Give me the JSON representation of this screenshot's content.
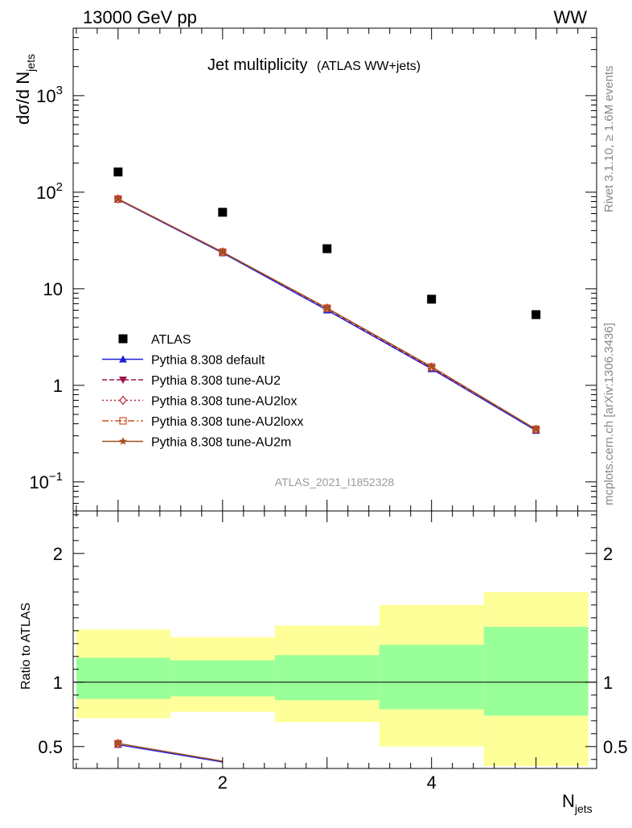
{
  "header": {
    "left": "13000 GeV pp",
    "right": "WW"
  },
  "title": {
    "main": "Jet multiplicity",
    "sub": "(ATLAS WW+jets)"
  },
  "side_labels": {
    "version": "Rivet 3.1.10, ≥ 1.6M events",
    "source": "mcplots.cern.ch [arXiv:1306.3436]"
  },
  "watermark": "ATLAS_2021_I1852328",
  "axes": {
    "ylabel_main": "dσ/d N",
    "ylabel_main_sub": "jets",
    "ylabel_ratio": "Ratio to ATLAS",
    "xlabel": "N",
    "xlabel_sub": "jets"
  },
  "colors": {
    "atlas": "#000000",
    "default": "#1f1fd6",
    "au2": "#a0144e",
    "au2lox": "#b8283c",
    "au2loxx": "#d0502a",
    "au2m": "#a0501a",
    "band_inner": "#99ff99",
    "band_outer": "#ffff99"
  },
  "chart_data": [
    {
      "type": "scatter",
      "panel": "main",
      "y_scale": "log",
      "xlim": [
        0.5,
        5.5
      ],
      "ylim": [
        0.05,
        5000
      ],
      "x_ticks": [
        2,
        4
      ],
      "y_ticks": [
        {
          "value": 0.1,
          "label": "10",
          "exp": "−1"
        },
        {
          "value": 1,
          "label": "1",
          "exp": ""
        },
        {
          "value": 10,
          "label": "10",
          "exp": ""
        },
        {
          "value": 100,
          "label": "10",
          "exp": "2"
        },
        {
          "value": 1000,
          "label": "10",
          "exp": "3"
        }
      ],
      "legend_position": "lower-left",
      "series": [
        {
          "name": "ATLAS",
          "key": "atlas",
          "style": "square",
          "x": [
            1,
            2,
            3,
            4,
            5
          ],
          "y": [
            162,
            62,
            26,
            7.8,
            5.4
          ]
        },
        {
          "name": "Pythia 8.308 default",
          "key": "default",
          "style": "solid",
          "marker": "triangle-up",
          "x": [
            1,
            2,
            3,
            4,
            5
          ],
          "y": [
            84,
            23.5,
            6.0,
            1.48,
            0.34
          ]
        },
        {
          "name": "Pythia 8.308 tune-AU2",
          "key": "au2",
          "style": "dashed",
          "marker": "triangle-down",
          "x": [
            1,
            2,
            3,
            4,
            5
          ],
          "y": [
            85,
            24,
            6.2,
            1.52,
            0.35
          ]
        },
        {
          "name": "Pythia 8.308 tune-AU2lox",
          "key": "au2lox",
          "style": "dotted",
          "marker": "diamond",
          "x": [
            1,
            2,
            3,
            4,
            5
          ],
          "y": [
            85,
            24,
            6.3,
            1.54,
            0.35
          ]
        },
        {
          "name": "Pythia 8.308 tune-AU2loxx",
          "key": "au2loxx",
          "style": "dashdot",
          "marker": "open-square",
          "x": [
            1,
            2,
            3,
            4,
            5
          ],
          "y": [
            85,
            24,
            6.3,
            1.55,
            0.35
          ]
        },
        {
          "name": "Pythia 8.308 tune-AU2m",
          "key": "au2m",
          "style": "solid",
          "marker": "star",
          "x": [
            1,
            2,
            3,
            4,
            5
          ],
          "y": [
            85,
            24,
            6.3,
            1.56,
            0.35
          ]
        }
      ]
    },
    {
      "type": "line",
      "panel": "ratio",
      "xlim": [
        0.5,
        5.5
      ],
      "ylim": [
        0.33,
        2.33
      ],
      "x_ticks": [
        2,
        4
      ],
      "y_ticks": [
        0.5,
        1,
        2
      ],
      "reference": 1,
      "bands": [
        {
          "x": [
            0.6,
            1.5
          ],
          "inner": [
            0.87,
            1.19
          ],
          "outer": [
            0.72,
            1.41
          ]
        },
        {
          "x": [
            1.5,
            2.5
          ],
          "inner": [
            0.89,
            1.17
          ],
          "outer": [
            0.77,
            1.35
          ]
        },
        {
          "x": [
            2.5,
            3.5
          ],
          "inner": [
            0.86,
            1.21
          ],
          "outer": [
            0.69,
            1.44
          ]
        },
        {
          "x": [
            3.5,
            4.5
          ],
          "inner": [
            0.79,
            1.29
          ],
          "outer": [
            0.5,
            1.6
          ]
        },
        {
          "x": [
            4.5,
            5.5
          ],
          "inner": [
            0.74,
            1.43
          ],
          "outer": [
            0.35,
            1.7
          ]
        }
      ],
      "series": [
        {
          "name": "Pythia 8.308 default",
          "key": "default",
          "x": [
            1,
            2
          ],
          "y": [
            0.515,
            0.38
          ]
        },
        {
          "name": "Pythia 8.308 tune-AU2m",
          "key": "au2m",
          "x": [
            1,
            2
          ],
          "y": [
            0.525,
            0.387
          ]
        }
      ]
    }
  ]
}
